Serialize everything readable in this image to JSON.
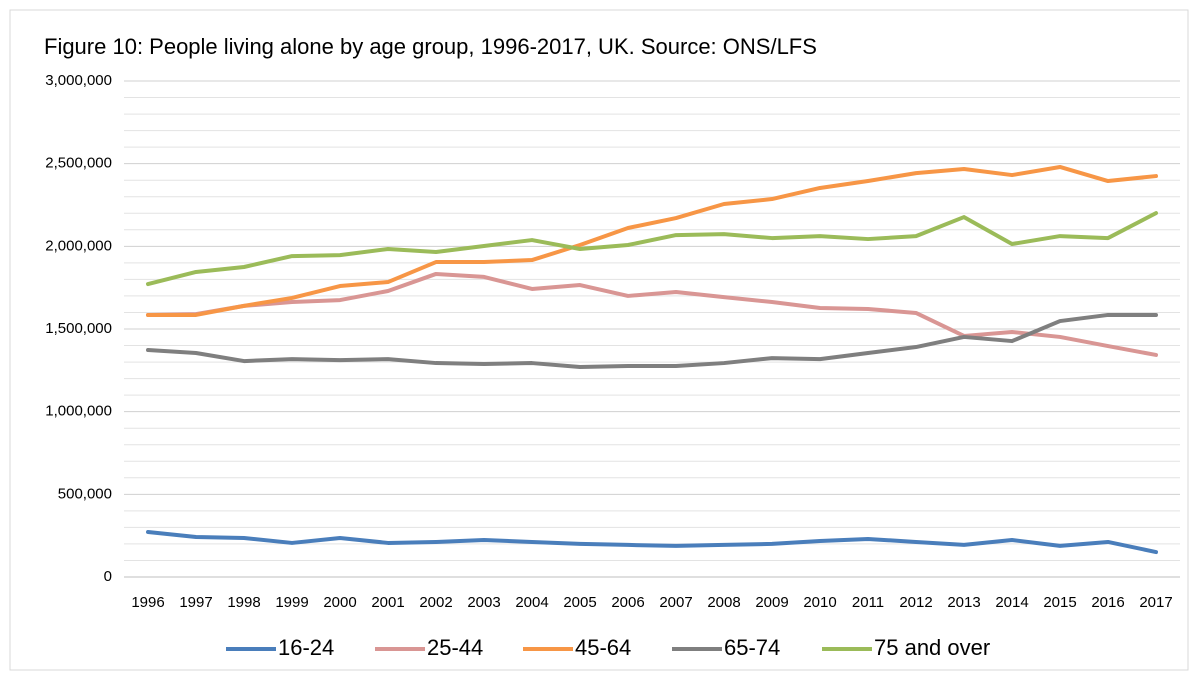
{
  "chart_data": {
    "type": "line",
    "title": "Figure 10: People living alone by age group, 1996-2017, UK. Source: ONS/LFS",
    "categories": [
      "1996",
      "1997",
      "1998",
      "1999",
      "2000",
      "2001",
      "2002",
      "2003",
      "2004",
      "2005",
      "2006",
      "2007",
      "2008",
      "2009",
      "2010",
      "2011",
      "2012",
      "2013",
      "2014",
      "2015",
      "2016",
      "2017"
    ],
    "series": [
      {
        "name": "16-24",
        "color": "#4a7ebb",
        "values": [
          272000,
          242000,
          236000,
          206000,
          236000,
          206000,
          212000,
          224000,
          212000,
          200000,
          194000,
          188000,
          194000,
          200000,
          218000,
          230000,
          212000,
          194000,
          224000,
          188000,
          212000,
          151000
        ]
      },
      {
        "name": "25-44",
        "color": "#d99694",
        "values": [
          1585000,
          1590000,
          1640000,
          1663000,
          1675000,
          1730000,
          1833000,
          1815000,
          1742000,
          1766000,
          1700000,
          1724000,
          1693000,
          1663000,
          1627000,
          1621000,
          1597000,
          1458000,
          1482000,
          1452000,
          1397000,
          1343000
        ]
      },
      {
        "name": "45-64",
        "color": "#f79646",
        "values": [
          1585000,
          1585000,
          1640000,
          1688000,
          1760000,
          1784000,
          1905000,
          1905000,
          1917000,
          2008000,
          2111000,
          2171000,
          2256000,
          2286000,
          2353000,
          2395000,
          2443000,
          2468000,
          2431000,
          2480000,
          2395000,
          2425000
        ]
      },
      {
        "name": "65-74",
        "color": "#7f7f7f",
        "values": [
          1373000,
          1355000,
          1306000,
          1318000,
          1312000,
          1318000,
          1294000,
          1288000,
          1294000,
          1270000,
          1276000,
          1276000,
          1294000,
          1324000,
          1318000,
          1355000,
          1391000,
          1452000,
          1427000,
          1548000,
          1585000,
          1585000
        ]
      },
      {
        "name": "75 and over",
        "color": "#9bbb59",
        "values": [
          1772000,
          1845000,
          1875000,
          1941000,
          1947000,
          1984000,
          1966000,
          2002000,
          2038000,
          1984000,
          2008000,
          2068000,
          2074000,
          2050000,
          2062000,
          2044000,
          2062000,
          2177000,
          2014000,
          2062000,
          2050000,
          2201000
        ]
      }
    ],
    "ylim": [
      0,
      3000000
    ],
    "yticks": [
      0,
      {
        "value": 500000,
        "label": "500,000"
      },
      {
        "value": 1000000,
        "label": "1,000,000"
      },
      {
        "value": 1500000,
        "label": "1,500,000"
      },
      {
        "value": 2000000,
        "label": "2,000,000"
      },
      {
        "value": 2500000,
        "label": "2,500,000"
      },
      {
        "value": 3000000,
        "label": "3,000,000"
      }
    ],
    "y_minor_grid": [
      100000,
      200000,
      300000,
      400000,
      600000,
      700000,
      800000,
      900000,
      1100000,
      1200000,
      1300000,
      1400000,
      1600000,
      1700000,
      1800000,
      1900000,
      2100000,
      2200000,
      2300000,
      2400000,
      2600000,
      2700000,
      2800000,
      2900000
    ],
    "grid": true,
    "legend": "bottom"
  }
}
